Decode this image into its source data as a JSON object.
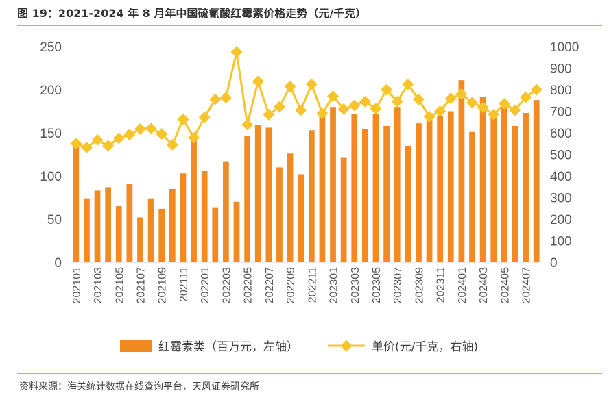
{
  "title": "图 19：2021-2024 年 8 月年中国硫氰酸红霉素价格走势（元/千克）",
  "source": "资料来源：海关统计数据在线查询平台，天风证券研究所",
  "colors": {
    "bar": "#F28A24",
    "line": "#F7C42C",
    "rule": "#F0A040"
  },
  "chart_data": {
    "type": "bar+line",
    "title": "2021-2024 年 8 月年中国硫氰酸红霉素价格走势（元/千克）",
    "categories": [
      "202101",
      "202102",
      "202103",
      "202104",
      "202105",
      "202106",
      "202107",
      "202108",
      "202109",
      "202110",
      "202111",
      "202112",
      "202201",
      "202202",
      "202203",
      "202204",
      "202205",
      "202206",
      "202207",
      "202208",
      "202209",
      "202210",
      "202211",
      "202212",
      "202301",
      "202302",
      "202303",
      "202304",
      "202305",
      "202306",
      "202307",
      "202308",
      "202309",
      "202310",
      "202311",
      "202312",
      "202401",
      "202402",
      "202403",
      "202404",
      "202405",
      "202406",
      "202407",
      "202408"
    ],
    "x_tick_labels": [
      "202101",
      "202103",
      "202105",
      "202107",
      "202109",
      "202111",
      "202201",
      "202203",
      "202205",
      "202207",
      "202209",
      "202211",
      "202301",
      "202303",
      "202305",
      "202307",
      "202309",
      "202311",
      "202401",
      "202403",
      "202405",
      "202407"
    ],
    "series": [
      {
        "name": "红霉素类（百万元，左轴）",
        "type": "bar",
        "axis": "left",
        "values": [
          135,
          74,
          83,
          87,
          65,
          91,
          52,
          74,
          62,
          85,
          103,
          145,
          106,
          63,
          117,
          70,
          146,
          159,
          156,
          110,
          126,
          102,
          153,
          176,
          180,
          121,
          172,
          154,
          172,
          158,
          180,
          135,
          161,
          170,
          170,
          175,
          211,
          151,
          192,
          171,
          182,
          158,
          173,
          188
        ]
      },
      {
        "name": "单价(元/千克，右轴)",
        "type": "line",
        "axis": "right",
        "values": [
          550,
          532,
          567,
          540,
          575,
          592,
          618,
          620,
          595,
          545,
          663,
          578,
          672,
          755,
          763,
          975,
          638,
          838,
          685,
          720,
          815,
          705,
          825,
          690,
          770,
          710,
          727,
          745,
          712,
          800,
          745,
          825,
          755,
          675,
          700,
          760,
          780,
          740,
          718,
          685,
          735,
          705,
          765,
          800
        ]
      }
    ],
    "y_left": {
      "min": 0,
      "max": 250,
      "ticks": [
        0,
        50,
        100,
        150,
        200,
        250
      ]
    },
    "y_right": {
      "min": 0,
      "max": 1000,
      "ticks": [
        0,
        100,
        200,
        300,
        400,
        500,
        600,
        700,
        800,
        900,
        1000
      ]
    },
    "legend_position": "bottom"
  }
}
